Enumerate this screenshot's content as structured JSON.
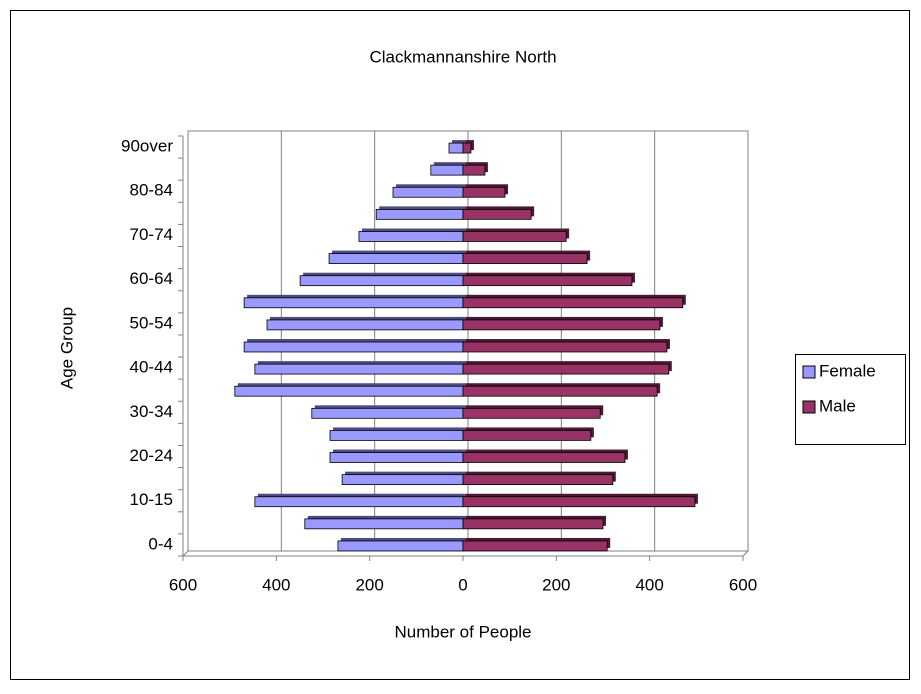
{
  "chart_data": {
    "type": "bar",
    "orientation": "horizontal",
    "title": "Clackmannanshire North",
    "x_label": "Number of People",
    "y_label": "Age Group",
    "categories": [
      "0-4",
      null,
      "10-15",
      null,
      "20-24",
      null,
      "30-34",
      null,
      "40-44",
      null,
      "50-54",
      null,
      "60-64",
      null,
      "70-74",
      null,
      "80-84",
      null,
      "90over"
    ],
    "series": [
      {
        "name": "Female",
        "color": "#9999ff",
        "values": [
          -268,
          -339,
          -446,
          -259,
          -285,
          -285,
          -324,
          -489,
          -446,
          -469,
          -420,
          -469,
          -349,
          -287,
          -223,
          -186,
          -150,
          -69,
          -30
        ]
      },
      {
        "name": "Male",
        "color": "#993366",
        "values": [
          309,
          300,
          497,
          321,
          347,
          274,
          294,
          416,
          441,
          437,
          422,
          471,
          362,
          266,
          221,
          146,
          90,
          47,
          17
        ]
      }
    ],
    "xlim": [
      -600,
      600
    ],
    "xticks": [
      {
        "value": -600,
        "label": "600"
      },
      {
        "value": -400,
        "label": "400"
      },
      {
        "value": -200,
        "label": "200"
      },
      0,
      200,
      400,
      600
    ],
    "grid": true,
    "legend": "right"
  }
}
